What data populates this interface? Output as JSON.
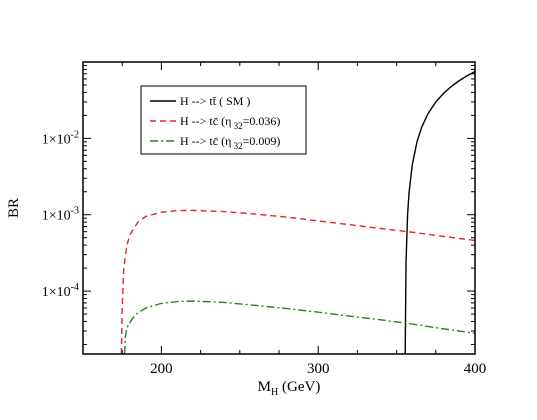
{
  "chart_data": {
    "type": "line",
    "xlabel": "M",
    "xlabel_sub": "H",
    "xlabel_unit": "(GeV)",
    "ylabel": "BR",
    "xlim": [
      150,
      400
    ],
    "ylim": [
      1.5e-05,
      0.1
    ],
    "y_scale": "log",
    "x_ticks": [
      {
        "value": 200,
        "label": "200"
      },
      {
        "value": 300,
        "label": "300"
      },
      {
        "value": 400,
        "label": "400"
      }
    ],
    "y_ticks": [
      {
        "value": 0.0001,
        "base": "1×10",
        "exp": "-4"
      },
      {
        "value": 0.001,
        "base": "1×10",
        "exp": "-3"
      },
      {
        "value": 0.01,
        "base": "1×10",
        "exp": "-2"
      }
    ],
    "grid": false,
    "legend_position": "top-left",
    "series": [
      {
        "name": "H --> tt̄ ( SM )",
        "legend": {
          "main": "H --> tt̄ ( SM )",
          "sub": "",
          "tail": ""
        },
        "color": "#000000",
        "dash": "",
        "x": [
          355.5,
          356,
          357,
          358,
          360,
          363,
          366,
          370,
          375,
          380,
          385,
          390,
          395,
          400
        ],
        "y": [
          1.5e-05,
          0.00023,
          0.001,
          0.002,
          0.0045,
          0.009,
          0.014,
          0.021,
          0.03,
          0.039,
          0.048,
          0.057,
          0.066,
          0.075
        ]
      },
      {
        "name": "H --> tc̄ (η 32=0.036)",
        "legend": {
          "main": "H --> tc̄ (η",
          "sub": "32",
          "tail": "=0.036)"
        },
        "color": "#e8202a",
        "dash": "6,4",
        "x": [
          174.5,
          175,
          176,
          178,
          180,
          185,
          190,
          200,
          210,
          220,
          240,
          260,
          280,
          300,
          320,
          340,
          360,
          380,
          400
        ],
        "y": [
          1.5e-05,
          6e-05,
          0.0002,
          0.0004,
          0.00055,
          0.0008,
          0.00095,
          0.00108,
          0.00113,
          0.00114,
          0.0011,
          0.00102,
          0.00093,
          0.00083,
          0.00074,
          0.00066,
          0.00059,
          0.00052,
          0.00046
        ]
      },
      {
        "name": "H --> tc̄ (η 32=0.009)",
        "legend": {
          "main": "H --> tc̄ (η",
          "sub": "32",
          "tail": "=0.009)"
        },
        "color": "#1a8a1a",
        "dash": "8,3,2,3",
        "x": [
          176.5,
          177,
          178,
          180,
          182,
          185,
          190,
          200,
          210,
          220,
          240,
          260,
          280,
          300,
          320,
          340,
          360,
          380,
          400
        ],
        "y": [
          1.5e-05,
          2.5e-05,
          3.3e-05,
          3.9e-05,
          4.5e-05,
          5.2e-05,
          6e-05,
          6.9e-05,
          7.3e-05,
          7.4e-05,
          7.1e-05,
          6.5e-05,
          5.9e-05,
          5.3e-05,
          4.7e-05,
          4.2e-05,
          3.7e-05,
          3.2e-05,
          2.8e-05
        ]
      }
    ]
  }
}
